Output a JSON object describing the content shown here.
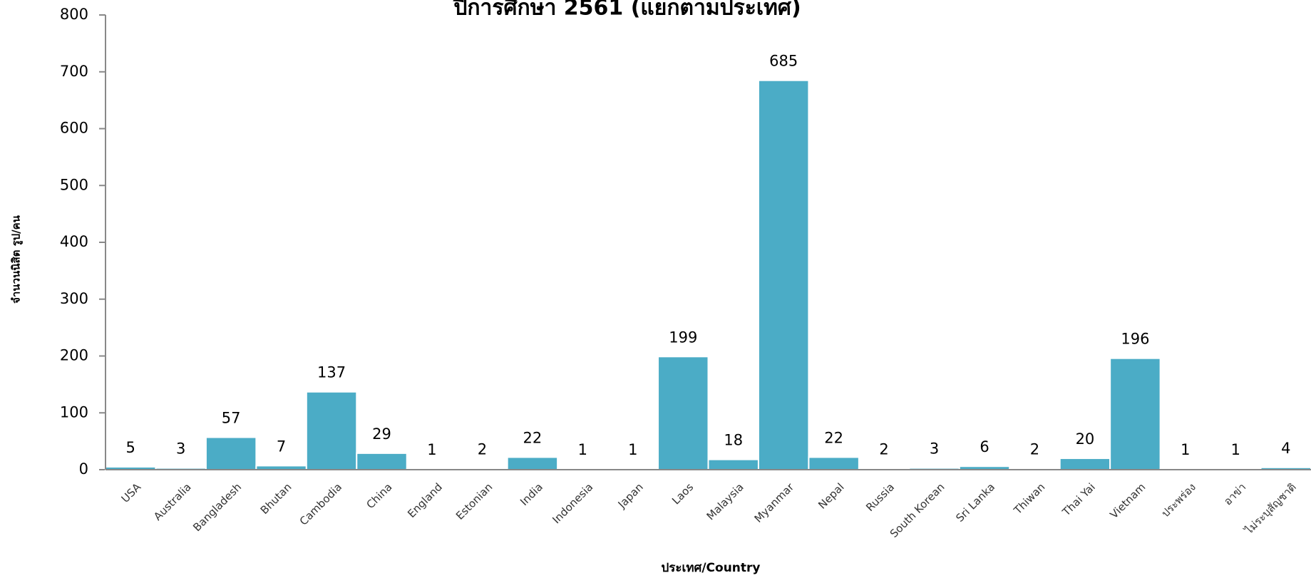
{
  "chart_data": {
    "type": "bar",
    "title": "ปีการศึกษา 2561 (แยกตามประเทศ)",
    "x_label": "ประเทศ/Country",
    "y_label": "จำนวนนิสิต รูป/คน",
    "categories": [
      "USA",
      "Australia",
      "Bangladesh",
      "Bhutan",
      "Cambodia",
      "China",
      "England",
      "Estonian",
      "India",
      "Indonesia",
      "Japan",
      "Laos",
      "Malaysia",
      "Myanmar",
      "Nepal",
      "Russia",
      "South Korean",
      "Sri Lanka",
      "Thiwan",
      "Thai Yai",
      "Vietnam",
      "ประพร่อง",
      "อาข่า",
      "ไม่ระบุสัญชาติ"
    ],
    "values": [
      5,
      3,
      57,
      7,
      137,
      29,
      1,
      2,
      22,
      1,
      1,
      199,
      18,
      685,
      22,
      2,
      3,
      6,
      2,
      20,
      196,
      1,
      1,
      4
    ],
    "color": "#4bacc6",
    "ylim": [
      0,
      800
    ],
    "yticks": [
      0,
      100,
      200,
      300,
      400,
      500,
      600,
      700,
      800
    ],
    "grid": false
  }
}
